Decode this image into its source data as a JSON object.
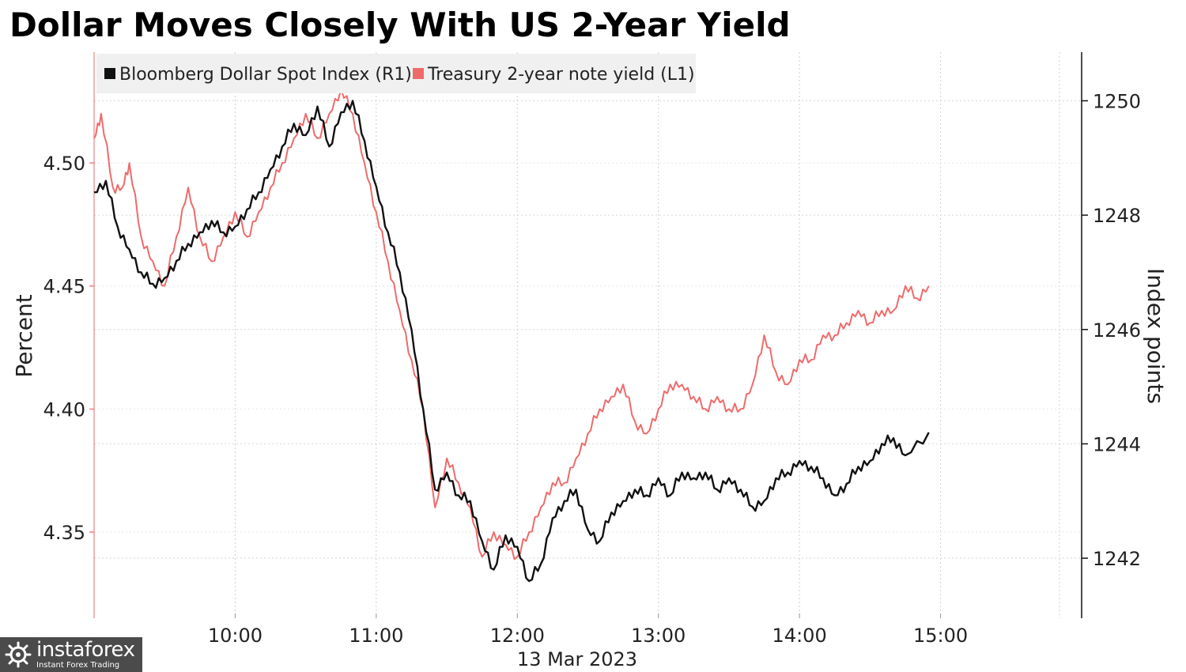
{
  "chart_data": {
    "type": "line",
    "title": "Dollar Moves Closely With US 2-Year Yield",
    "date_label": "13 Mar 2023",
    "left_axis": {
      "label": "Percent",
      "ticks": [
        "4.35",
        "4.40",
        "4.45",
        "4.50"
      ],
      "ylim": [
        4.315,
        4.545
      ]
    },
    "right_axis": {
      "label": "Index points",
      "ticks": [
        "1242",
        "1244",
        "1246",
        "1248",
        "1250"
      ],
      "ylim": [
        1240.95,
        1250.85
      ]
    },
    "x_axis": {
      "ticks": [
        "10:00",
        "11:00",
        "12:00",
        "13:00",
        "14:00",
        "15:00"
      ],
      "xlim": [
        "09:00",
        "16:00"
      ]
    },
    "grid": true,
    "legend_position": "top-left",
    "series": [
      {
        "name": "Bloomberg Dollar Spot Index (R1)",
        "axis": "right",
        "color": "#111111",
        "x": [
          "09:00",
          "09:05",
          "09:10",
          "09:15",
          "09:20",
          "09:25",
          "09:30",
          "09:35",
          "09:40",
          "09:45",
          "09:50",
          "09:55",
          "10:00",
          "10:05",
          "10:10",
          "10:15",
          "10:20",
          "10:25",
          "10:30",
          "10:35",
          "10:40",
          "10:45",
          "10:50",
          "10:55",
          "11:00",
          "11:05",
          "11:10",
          "11:15",
          "11:20",
          "11:25",
          "11:30",
          "11:35",
          "11:40",
          "11:45",
          "11:50",
          "11:55",
          "12:00",
          "12:05",
          "12:10",
          "12:15",
          "12:20",
          "12:25",
          "12:30",
          "12:35",
          "12:40",
          "12:45",
          "12:50",
          "12:55",
          "13:00",
          "13:05",
          "13:10",
          "13:15",
          "13:20",
          "13:25",
          "13:30",
          "13:35",
          "13:40",
          "13:45",
          "13:50",
          "13:55",
          "14:00",
          "14:05",
          "14:10",
          "14:15",
          "14:20",
          "14:25",
          "14:30",
          "14:35",
          "14:40",
          "14:45",
          "14:55"
        ],
        "values": [
          1248.4,
          1248.6,
          1247.8,
          1247.4,
          1247.0,
          1246.8,
          1246.9,
          1247.2,
          1247.5,
          1247.7,
          1247.9,
          1247.7,
          1247.8,
          1248.1,
          1248.4,
          1248.8,
          1249.2,
          1249.6,
          1249.4,
          1249.9,
          1249.2,
          1249.8,
          1250.0,
          1249.3,
          1248.5,
          1247.7,
          1247.0,
          1246.0,
          1244.6,
          1243.2,
          1243.5,
          1243.1,
          1243.0,
          1242.3,
          1241.8,
          1242.4,
          1242.2,
          1241.6,
          1241.9,
          1242.7,
          1243.0,
          1243.2,
          1242.5,
          1242.3,
          1242.8,
          1243.0,
          1243.2,
          1243.1,
          1243.4,
          1243.1,
          1243.5,
          1243.4,
          1243.5,
          1243.2,
          1243.4,
          1243.2,
          1242.9,
          1243.0,
          1243.4,
          1243.5,
          1243.7,
          1243.6,
          1243.4,
          1243.1,
          1243.3,
          1243.6,
          1243.7,
          1244.0,
          1244.1,
          1243.8,
          1244.2
        ]
      },
      {
        "name": "Treasury 2-year note yield (L1)",
        "axis": "left",
        "color": "#ee6b6b",
        "x": [
          "09:00",
          "09:03",
          "09:08",
          "09:12",
          "09:15",
          "09:20",
          "09:25",
          "09:30",
          "09:35",
          "09:40",
          "09:45",
          "09:50",
          "09:55",
          "10:00",
          "10:05",
          "10:10",
          "10:15",
          "10:20",
          "10:25",
          "10:30",
          "10:35",
          "10:40",
          "10:45",
          "10:50",
          "10:55",
          "11:00",
          "11:05",
          "11:10",
          "11:15",
          "11:20",
          "11:25",
          "11:30",
          "11:35",
          "11:40",
          "11:45",
          "11:50",
          "11:55",
          "12:00",
          "12:05",
          "12:10",
          "12:15",
          "12:20",
          "12:25",
          "12:30",
          "12:35",
          "12:40",
          "12:45",
          "12:50",
          "12:55",
          "13:00",
          "13:05",
          "13:10",
          "13:15",
          "13:20",
          "13:25",
          "13:30",
          "13:35",
          "13:40",
          "13:45",
          "13:50",
          "13:55",
          "14:00",
          "14:05",
          "14:10",
          "14:15",
          "14:20",
          "14:25",
          "14:30",
          "14:35",
          "14:40",
          "14:45",
          "14:50",
          "14:55"
        ],
        "values": [
          4.51,
          4.52,
          4.49,
          4.49,
          4.5,
          4.47,
          4.46,
          4.45,
          4.47,
          4.49,
          4.47,
          4.46,
          4.47,
          4.48,
          4.47,
          4.48,
          4.49,
          4.5,
          4.51,
          4.52,
          4.51,
          4.52,
          4.53,
          4.52,
          4.5,
          4.48,
          4.46,
          4.44,
          4.42,
          4.4,
          4.36,
          4.38,
          4.37,
          4.36,
          4.34,
          4.35,
          4.345,
          4.34,
          4.35,
          4.36,
          4.37,
          4.37,
          4.38,
          4.39,
          4.4,
          4.405,
          4.41,
          4.395,
          4.39,
          4.4,
          4.41,
          4.41,
          4.405,
          4.4,
          4.405,
          4.4,
          4.4,
          4.41,
          4.43,
          4.415,
          4.41,
          4.42,
          4.42,
          4.43,
          4.43,
          4.435,
          4.44,
          4.435,
          4.44,
          4.44,
          4.45,
          4.445,
          4.45
        ]
      }
    ]
  },
  "watermark": {
    "brand": "instaforex",
    "tagline": "Instant Forex Trading"
  }
}
